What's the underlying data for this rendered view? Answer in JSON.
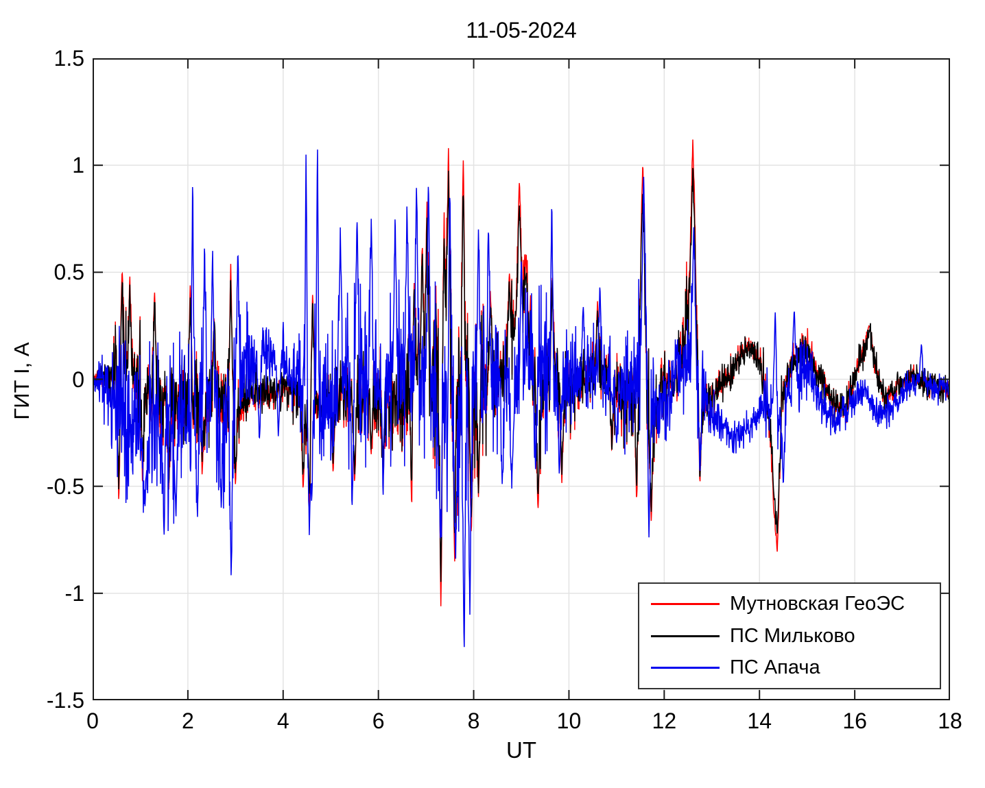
{
  "chart_data": {
    "type": "line",
    "title": "11-05-2024",
    "xlabel": "UT",
    "ylabel": "ГИТ I, А",
    "xlim": [
      0,
      18
    ],
    "ylim": [
      -1.5,
      1.5
    ],
    "grid": true,
    "grid_color": "#e3e3e3",
    "frame_color": "#1a1a1a",
    "background_color": "#ffffff",
    "legend_position": "bottom-right",
    "xticks": {
      "values": [
        0,
        2,
        4,
        6,
        8,
        10,
        12,
        14,
        16,
        18
      ],
      "labels": [
        "0",
        "2",
        "4",
        "6",
        "8",
        "10",
        "12",
        "14",
        "16",
        "18"
      ]
    },
    "yticks": {
      "values": [
        1.5,
        1,
        0.5,
        0,
        -0.5,
        -1,
        -1.5
      ],
      "labels": [
        "1.5",
        "1",
        "0.5",
        "0",
        "-0.5",
        "-1",
        "-1.5"
      ]
    },
    "series": [
      {
        "name": "Мутновская ГеоЭС",
        "key": "mutnovskaya-geoes",
        "color": "#ff0000",
        "seed": 101,
        "baseline": [
          [
            0,
            0.02
          ],
          [
            0.35,
            0.0
          ],
          [
            0.6,
            0.05
          ],
          [
            1.0,
            0.0
          ],
          [
            1.4,
            -0.1
          ],
          [
            2.0,
            -0.12
          ],
          [
            2.5,
            -0.1
          ],
          [
            3.0,
            -0.15
          ],
          [
            3.3,
            -0.08
          ],
          [
            3.7,
            -0.07
          ],
          [
            4.1,
            -0.05
          ],
          [
            4.5,
            -0.15
          ],
          [
            5.0,
            -0.08
          ],
          [
            5.5,
            -0.1
          ],
          [
            6.0,
            -0.1
          ],
          [
            6.5,
            -0.1
          ],
          [
            6.9,
            0.1
          ],
          [
            7.1,
            0.0
          ],
          [
            7.45,
            0.1
          ],
          [
            7.7,
            -0.1
          ],
          [
            8.0,
            -0.1
          ],
          [
            8.3,
            0.0
          ],
          [
            8.6,
            0.05
          ],
          [
            8.9,
            0.35
          ],
          [
            9.0,
            0.45
          ],
          [
            9.15,
            0.25
          ],
          [
            9.35,
            -0.2
          ],
          [
            9.6,
            0.05
          ],
          [
            9.9,
            -0.05
          ],
          [
            10.3,
            -0.02
          ],
          [
            10.6,
            0.08
          ],
          [
            11.0,
            -0.05
          ],
          [
            11.45,
            -0.1
          ],
          [
            11.55,
            0.3
          ],
          [
            11.7,
            -0.25
          ],
          [
            11.9,
            -0.05
          ],
          [
            12.2,
            -0.02
          ],
          [
            12.55,
            0.35
          ],
          [
            12.65,
            0.3
          ],
          [
            12.8,
            -0.15
          ],
          [
            13.1,
            -0.05
          ],
          [
            13.45,
            0.05
          ],
          [
            13.75,
            0.17
          ],
          [
            13.95,
            0.12
          ],
          [
            14.1,
            -0.02
          ],
          [
            14.35,
            -0.5
          ],
          [
            14.5,
            -0.05
          ],
          [
            14.75,
            0.1
          ],
          [
            15.0,
            0.15
          ],
          [
            15.3,
            0.0
          ],
          [
            15.55,
            -0.12
          ],
          [
            15.8,
            -0.15
          ],
          [
            16.1,
            0.1
          ],
          [
            16.3,
            0.2
          ],
          [
            16.6,
            -0.1
          ],
          [
            16.9,
            -0.05
          ],
          [
            17.2,
            0.02
          ],
          [
            17.5,
            -0.02
          ],
          [
            17.8,
            -0.05
          ],
          [
            18,
            -0.04
          ]
        ],
        "envelope": [
          [
            0,
            0.03
          ],
          [
            0.35,
            0.06
          ],
          [
            0.5,
            0.25
          ],
          [
            0.8,
            0.28
          ],
          [
            1.2,
            0.25
          ],
          [
            1.8,
            0.22
          ],
          [
            2.3,
            0.18
          ],
          [
            2.9,
            0.2
          ],
          [
            3.25,
            0.08
          ],
          [
            4.15,
            0.07
          ],
          [
            4.45,
            0.22
          ],
          [
            4.8,
            0.12
          ],
          [
            5.3,
            0.15
          ],
          [
            5.9,
            0.18
          ],
          [
            6.4,
            0.22
          ],
          [
            7.0,
            0.28
          ],
          [
            7.3,
            0.42
          ],
          [
            7.6,
            0.45
          ],
          [
            8.0,
            0.3
          ],
          [
            8.4,
            0.22
          ],
          [
            8.9,
            0.18
          ],
          [
            9.3,
            0.22
          ],
          [
            9.8,
            0.2
          ],
          [
            10.3,
            0.12
          ],
          [
            10.8,
            0.12
          ],
          [
            11.3,
            0.2
          ],
          [
            11.6,
            0.3
          ],
          [
            11.9,
            0.18
          ],
          [
            12.2,
            0.1
          ],
          [
            12.6,
            0.25
          ],
          [
            12.9,
            0.1
          ],
          [
            13.3,
            0.06
          ],
          [
            13.9,
            0.05
          ],
          [
            14.2,
            0.12
          ],
          [
            14.35,
            0.2
          ],
          [
            14.6,
            0.08
          ],
          [
            15.1,
            0.07
          ],
          [
            15.6,
            0.06
          ],
          [
            16.2,
            0.06
          ],
          [
            16.8,
            0.05
          ],
          [
            17.4,
            0.04
          ],
          [
            18,
            0.04
          ]
        ],
        "spikes": [
          [
            0.55,
            -0.58
          ],
          [
            0.62,
            0.52
          ],
          [
            0.78,
            0.5
          ],
          [
            1.05,
            -0.5
          ],
          [
            1.3,
            0.42
          ],
          [
            1.6,
            -0.52
          ],
          [
            2.05,
            0.45
          ],
          [
            2.3,
            -0.45
          ],
          [
            2.55,
            0.3
          ],
          [
            2.9,
            0.55
          ],
          [
            3.0,
            -0.5
          ],
          [
            4.42,
            -0.52
          ],
          [
            4.55,
            -0.62
          ],
          [
            4.62,
            0.42
          ],
          [
            5.05,
            -0.45
          ],
          [
            5.5,
            -0.5
          ],
          [
            5.85,
            -0.35
          ],
          [
            6.1,
            -0.45
          ],
          [
            6.7,
            -0.63
          ],
          [
            6.75,
            0.45
          ],
          [
            6.92,
            0.65
          ],
          [
            7.02,
            0.83
          ],
          [
            7.31,
            -1.08,
            0.06
          ],
          [
            7.38,
            0.78
          ],
          [
            7.47,
            1.08,
            0.06
          ],
          [
            7.6,
            -0.88
          ],
          [
            7.78,
            1.05,
            0.06
          ],
          [
            7.95,
            -0.75
          ],
          [
            8.1,
            -0.55
          ],
          [
            8.35,
            0.42
          ],
          [
            8.75,
            0.5
          ],
          [
            8.96,
            0.93,
            0.07
          ],
          [
            9.1,
            0.6
          ],
          [
            9.35,
            -0.62
          ],
          [
            9.65,
            0.48
          ],
          [
            9.85,
            -0.5
          ],
          [
            10.6,
            0.37
          ],
          [
            10.9,
            -0.35
          ],
          [
            11.42,
            -0.58
          ],
          [
            11.55,
            1.02,
            0.08
          ],
          [
            11.73,
            -0.68
          ],
          [
            12.6,
            1.12,
            0.09
          ],
          [
            12.75,
            -0.5
          ],
          [
            14.3,
            -0.6
          ],
          [
            14.37,
            -0.81,
            0.08
          ],
          [
            16.3,
            0.25,
            0.1
          ]
        ]
      },
      {
        "name": "ПС Мильково",
        "key": "ps-milkovo",
        "color": "#000000",
        "seed": 202,
        "follow": {
          "series": "Мутновская ГеоЭС",
          "scale": 0.88,
          "noise": 0.05
        }
      },
      {
        "name": "ПС Апача",
        "key": "ps-apacha",
        "color": "#0000ee",
        "seed": 303,
        "baseline": [
          [
            0,
            0.0
          ],
          [
            0.3,
            -0.05
          ],
          [
            0.7,
            -0.2
          ],
          [
            1.2,
            -0.25
          ],
          [
            1.6,
            -0.25
          ],
          [
            2.0,
            -0.15
          ],
          [
            2.4,
            -0.1
          ],
          [
            2.8,
            -0.15
          ],
          [
            3.2,
            0.05
          ],
          [
            3.6,
            0.12
          ],
          [
            4.0,
            0.08
          ],
          [
            4.4,
            -0.05
          ],
          [
            4.8,
            -0.1
          ],
          [
            5.2,
            0.0
          ],
          [
            5.6,
            0.05
          ],
          [
            6.0,
            0.0
          ],
          [
            6.4,
            0.05
          ],
          [
            6.8,
            0.1
          ],
          [
            7.2,
            -0.1
          ],
          [
            7.6,
            -0.15
          ],
          [
            8.0,
            -0.05
          ],
          [
            8.4,
            0.0
          ],
          [
            8.8,
            -0.05
          ],
          [
            9.2,
            0.1
          ],
          [
            9.5,
            0.0
          ],
          [
            9.8,
            -0.05
          ],
          [
            10.2,
            0.0
          ],
          [
            10.6,
            0.02
          ],
          [
            11.0,
            -0.05
          ],
          [
            11.35,
            -0.05
          ],
          [
            11.6,
            0.1
          ],
          [
            11.8,
            -0.2
          ],
          [
            12.1,
            -0.05
          ],
          [
            12.6,
            0.15
          ],
          [
            12.85,
            -0.1
          ],
          [
            13.1,
            -0.18
          ],
          [
            13.5,
            -0.28
          ],
          [
            13.9,
            -0.2
          ],
          [
            14.15,
            -0.1
          ],
          [
            14.45,
            -0.2
          ],
          [
            14.7,
            0.0
          ],
          [
            15.0,
            0.05
          ],
          [
            15.3,
            -0.1
          ],
          [
            15.6,
            -0.2
          ],
          [
            15.9,
            -0.12
          ],
          [
            16.2,
            -0.05
          ],
          [
            16.5,
            -0.18
          ],
          [
            16.8,
            -0.12
          ],
          [
            17.1,
            -0.05
          ],
          [
            17.4,
            0.0
          ],
          [
            17.7,
            -0.05
          ],
          [
            18,
            -0.02
          ]
        ],
        "envelope": [
          [
            0,
            0.04
          ],
          [
            0.3,
            0.15
          ],
          [
            0.6,
            0.3
          ],
          [
            1.0,
            0.32
          ],
          [
            1.5,
            0.35
          ],
          [
            2.0,
            0.3
          ],
          [
            2.5,
            0.28
          ],
          [
            3.0,
            0.3
          ],
          [
            3.4,
            0.15
          ],
          [
            3.8,
            0.12
          ],
          [
            4.2,
            0.15
          ],
          [
            4.5,
            0.3
          ],
          [
            5.0,
            0.3
          ],
          [
            5.5,
            0.32
          ],
          [
            6.0,
            0.32
          ],
          [
            6.5,
            0.35
          ],
          [
            7.0,
            0.35
          ],
          [
            7.5,
            0.45
          ],
          [
            8.0,
            0.35
          ],
          [
            8.5,
            0.3
          ],
          [
            9.0,
            0.28
          ],
          [
            9.5,
            0.3
          ],
          [
            10.0,
            0.2
          ],
          [
            10.5,
            0.18
          ],
          [
            11.0,
            0.18
          ],
          [
            11.5,
            0.3
          ],
          [
            12.0,
            0.15
          ],
          [
            12.6,
            0.25
          ],
          [
            13.0,
            0.1
          ],
          [
            13.5,
            0.08
          ],
          [
            14.0,
            0.1
          ],
          [
            14.4,
            0.15
          ],
          [
            14.9,
            0.12
          ],
          [
            15.4,
            0.08
          ],
          [
            16.0,
            0.07
          ],
          [
            16.5,
            0.07
          ],
          [
            17.0,
            0.06
          ],
          [
            17.5,
            0.06
          ],
          [
            18,
            0.05
          ]
        ],
        "spikes": [
          [
            1.1,
            -0.6
          ],
          [
            1.5,
            -0.75
          ],
          [
            1.75,
            -0.65
          ],
          [
            2.1,
            0.97,
            0.035
          ],
          [
            2.2,
            -0.65
          ],
          [
            2.35,
            0.65
          ],
          [
            2.52,
            0.6
          ],
          [
            2.7,
            -0.6
          ],
          [
            2.91,
            -0.97,
            0.04
          ],
          [
            3.05,
            0.62
          ],
          [
            3.5,
            -0.3
          ],
          [
            3.9,
            -0.28
          ],
          [
            4.48,
            1.07,
            0.035
          ],
          [
            4.55,
            -0.75
          ],
          [
            4.6,
            -0.6
          ],
          [
            4.72,
            1.13,
            0.035
          ],
          [
            5.2,
            0.72
          ],
          [
            5.45,
            -0.6
          ],
          [
            5.55,
            0.77
          ],
          [
            5.85,
            0.75
          ],
          [
            6.1,
            -0.55
          ],
          [
            6.35,
            0.77
          ],
          [
            6.6,
            0.83
          ],
          [
            6.8,
            0.92
          ],
          [
            7.05,
            0.95
          ],
          [
            7.3,
            -0.8
          ],
          [
            7.5,
            0.9
          ],
          [
            7.62,
            -0.85
          ],
          [
            7.8,
            -1.31,
            0.05
          ],
          [
            7.92,
            -1.1
          ],
          [
            8.1,
            0.7
          ],
          [
            8.31,
            0.72
          ],
          [
            8.6,
            -0.5
          ],
          [
            8.8,
            -0.52
          ],
          [
            9.0,
            0.55
          ],
          [
            9.3,
            -0.45
          ],
          [
            9.64,
            0.86,
            0.04
          ],
          [
            9.8,
            -0.45
          ],
          [
            10.3,
            0.35
          ],
          [
            10.65,
            0.45
          ],
          [
            11.0,
            -0.3
          ],
          [
            11.57,
            0.97,
            0.06
          ],
          [
            11.68,
            -0.75
          ],
          [
            12.62,
            0.72,
            0.06
          ],
          [
            12.75,
            -0.45
          ],
          [
            14.33,
            0.32
          ],
          [
            14.5,
            -0.5
          ],
          [
            14.73,
            0.33
          ],
          [
            17.4,
            0.17
          ]
        ]
      }
    ]
  }
}
